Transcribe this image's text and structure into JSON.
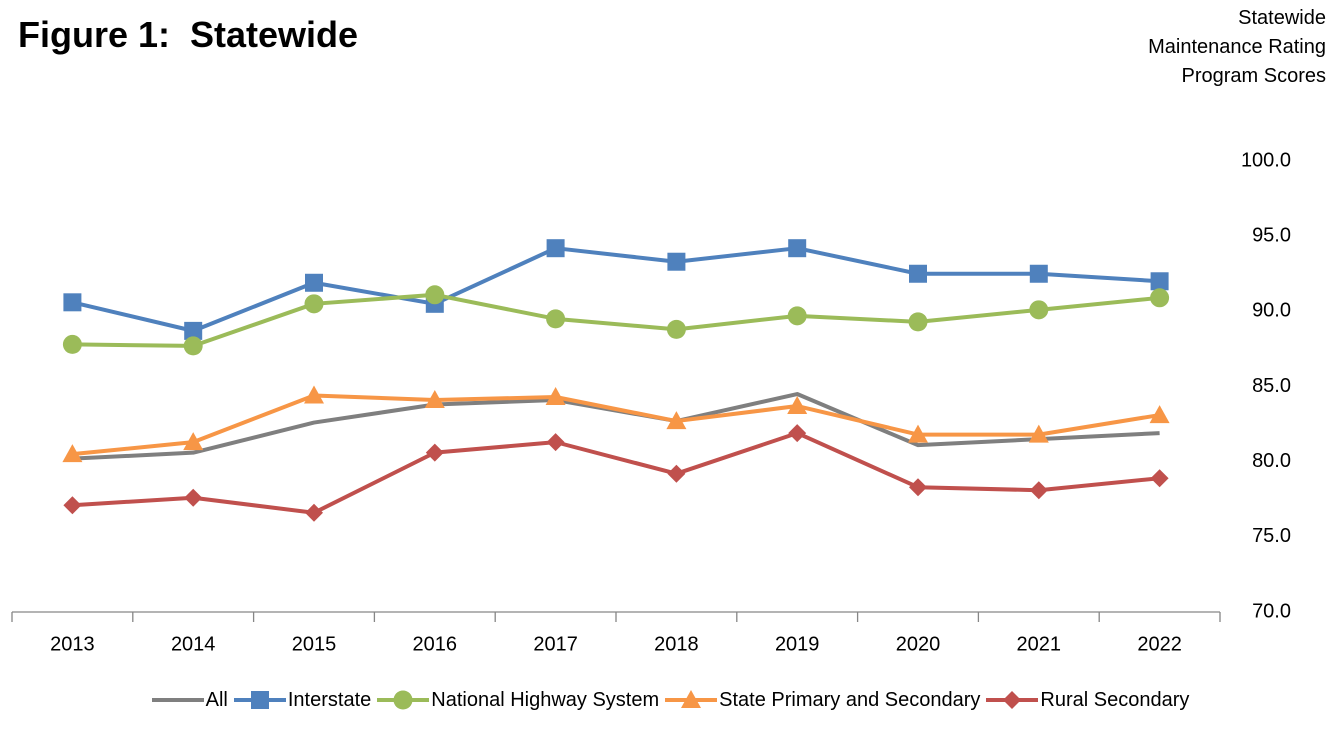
{
  "chart_data": {
    "type": "line",
    "title": "Figure 1:  Statewide",
    "y_label": "Statewide Maintenance Rating Program Scores",
    "categories": [
      "2013",
      "2014",
      "2015",
      "2016",
      "2017",
      "2018",
      "2019",
      "2020",
      "2021",
      "2022"
    ],
    "ylim": [
      70,
      100
    ],
    "yticks": [
      {
        "value": 70,
        "label": "70.0"
      },
      {
        "value": 75,
        "label": "75.0"
      },
      {
        "value": 80,
        "label": "80.0"
      },
      {
        "value": 85,
        "label": "85.0"
      },
      {
        "value": 90,
        "label": "90.0"
      },
      {
        "value": 95,
        "label": "95.0"
      },
      {
        "value": 100,
        "label": "100.0"
      }
    ],
    "legend": "bottom",
    "series": [
      {
        "name": "All",
        "color": "#7f7f7f",
        "marker": "none",
        "values": [
          80.2,
          80.6,
          82.6,
          83.8,
          84.1,
          82.7,
          84.5,
          81.1,
          81.5,
          81.9
        ]
      },
      {
        "name": "Interstate",
        "color": "#4f81bd",
        "marker": "square",
        "values": [
          90.6,
          88.7,
          91.9,
          90.5,
          94.2,
          93.3,
          94.2,
          92.5,
          92.5,
          92.0
        ]
      },
      {
        "name": "National Highway System",
        "color": "#9bbb59",
        "marker": "circle",
        "values": [
          87.8,
          87.7,
          90.5,
          91.1,
          89.5,
          88.8,
          89.7,
          89.3,
          90.1,
          90.9
        ]
      },
      {
        "name": "State Primary and Secondary",
        "color": "#f79646",
        "marker": "triangle",
        "values": [
          80.5,
          81.3,
          84.4,
          84.1,
          84.3,
          82.7,
          83.7,
          81.8,
          81.8,
          83.1
        ]
      },
      {
        "name": "Rural Secondary",
        "color": "#c0504d",
        "marker": "diamond",
        "values": [
          77.1,
          77.6,
          76.6,
          80.6,
          81.3,
          79.2,
          81.9,
          78.3,
          78.1,
          78.9
        ]
      }
    ]
  }
}
